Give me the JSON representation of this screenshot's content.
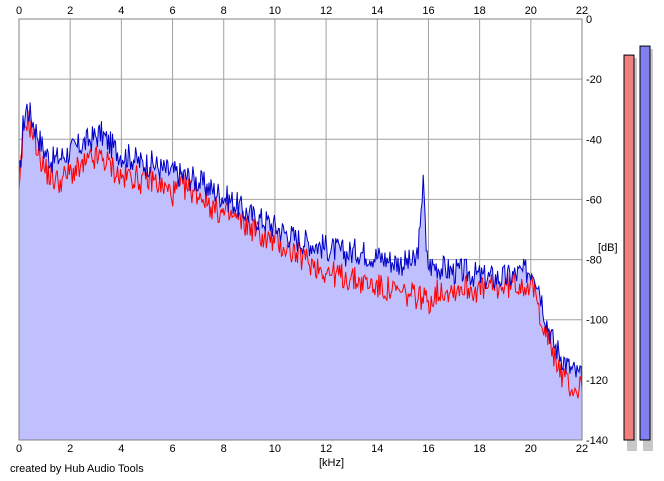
{
  "chart_data": {
    "type": "area",
    "xlabel": "[kHz]",
    "ylabel": "[dB]",
    "xlim": [
      0,
      22
    ],
    "ylim": [
      -140,
      0
    ],
    "x_ticks": [
      0,
      2,
      4,
      6,
      8,
      10,
      12,
      14,
      16,
      18,
      20,
      22
    ],
    "y_ticks": [
      0,
      -20,
      -40,
      -60,
      -80,
      -100,
      -120,
      -140
    ],
    "grid": true,
    "series": [
      {
        "color": "#0000c8",
        "fill": "#c0c0ff",
        "x": [
          0,
          0.15,
          0.3,
          0.5,
          0.8,
          1.0,
          1.3,
          1.6,
          2.0,
          2.4,
          2.8,
          3.2,
          3.6,
          4.0,
          4.4,
          4.8,
          5.2,
          5.6,
          6.0,
          6.4,
          6.8,
          7.2,
          7.6,
          8.0,
          8.4,
          8.8,
          9.2,
          9.6,
          10.0,
          10.4,
          10.8,
          11.2,
          11.6,
          12.0,
          12.4,
          12.8,
          13.2,
          13.6,
          14.0,
          14.4,
          14.8,
          15.2,
          15.5,
          15.7,
          15.8,
          15.9,
          16.0,
          16.3,
          16.6,
          17.0,
          17.4,
          17.8,
          18.2,
          18.6,
          19.0,
          19.4,
          19.8,
          20.1,
          20.3,
          20.6,
          20.9,
          21.2,
          21.5,
          21.8,
          22.0
        ],
        "y": [
          -56,
          -36,
          -29,
          -33,
          -40,
          -44,
          -47,
          -46,
          -44,
          -42,
          -40,
          -38,
          -42,
          -45,
          -46,
          -48,
          -48,
          -50,
          -51,
          -52,
          -53,
          -55,
          -57,
          -59,
          -61,
          -64,
          -66,
          -67,
          -69,
          -71,
          -73,
          -74,
          -75,
          -76,
          -77,
          -78,
          -77,
          -78,
          -79,
          -80,
          -81,
          -81,
          -81,
          -70,
          -48,
          -78,
          -82,
          -82,
          -83,
          -84,
          -84,
          -85,
          -86,
          -86,
          -86,
          -85,
          -84,
          -83,
          -88,
          -100,
          -108,
          -112,
          -116,
          -118,
          -120
        ]
      },
      {
        "color": "#ff0000",
        "x": [
          0,
          0.15,
          0.3,
          0.5,
          0.8,
          1.0,
          1.3,
          1.6,
          2.0,
          2.4,
          2.8,
          3.2,
          3.6,
          4.0,
          4.4,
          4.8,
          5.2,
          5.6,
          6.0,
          6.4,
          6.8,
          7.2,
          7.6,
          8.0,
          8.4,
          8.8,
          9.2,
          9.6,
          10.0,
          10.4,
          10.8,
          11.2,
          11.6,
          12.0,
          12.4,
          12.8,
          13.2,
          13.6,
          14.0,
          14.4,
          14.8,
          15.2,
          15.6,
          16.0,
          16.3,
          16.6,
          17.0,
          17.4,
          17.8,
          18.2,
          18.6,
          19.0,
          19.4,
          19.8,
          20.1,
          20.3,
          20.6,
          20.9,
          21.2,
          21.5,
          21.8,
          22.0
        ],
        "y": [
          -60,
          -40,
          -33,
          -37,
          -45,
          -50,
          -53,
          -54,
          -51,
          -50,
          -47,
          -46,
          -49,
          -53,
          -52,
          -54,
          -53,
          -56,
          -58,
          -56,
          -57,
          -59,
          -63,
          -65,
          -66,
          -68,
          -70,
          -73,
          -74,
          -76,
          -78,
          -80,
          -82,
          -84,
          -85,
          -86,
          -87,
          -88,
          -89,
          -90,
          -91,
          -92,
          -92,
          -94,
          -91,
          -90,
          -90,
          -89,
          -90,
          -90,
          -89,
          -89,
          -88,
          -88,
          -90,
          -96,
          -104,
          -112,
          -118,
          -122,
          -124,
          -121
        ]
      }
    ],
    "level_meters": [
      {
        "color": "#f08080",
        "top_db": -12
      },
      {
        "color": "#8080f0",
        "top_db": -9
      }
    ]
  },
  "footer": {
    "credit": "created by Hub Audio Tools"
  }
}
